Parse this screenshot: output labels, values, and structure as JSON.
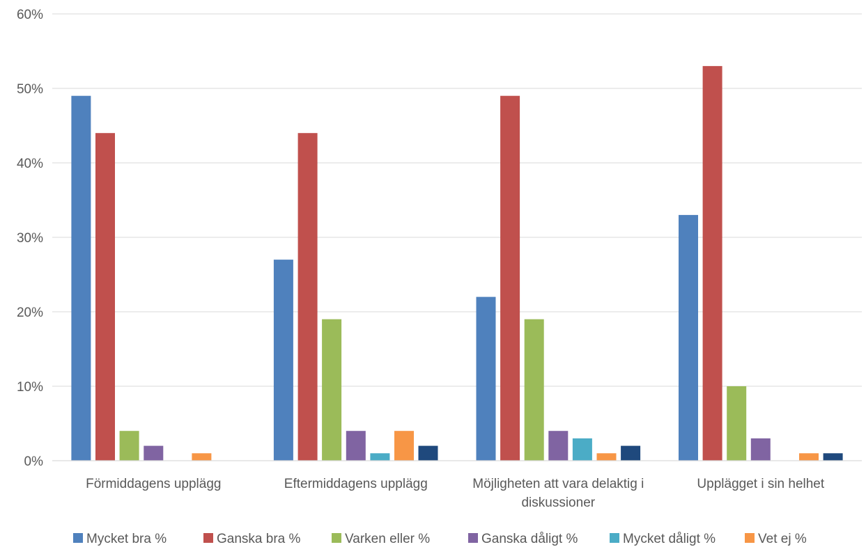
{
  "chart_data": {
    "type": "bar",
    "categories": [
      [
        "Förmiddagens upplägg"
      ],
      [
        "Eftermiddagens upplägg"
      ],
      [
        "Möjligheten att vara delaktig i",
        "diskussioner"
      ],
      [
        "Upplägget i sin helhet"
      ]
    ],
    "series": [
      {
        "name": "Mycket bra %",
        "color": "#4F81BD",
        "values": [
          49,
          27,
          22,
          33
        ]
      },
      {
        "name": "Ganska bra %",
        "color": "#C0504D",
        "values": [
          44,
          44,
          49,
          53
        ]
      },
      {
        "name": "Varken eller %",
        "color": "#9BBB59",
        "values": [
          4,
          19,
          19,
          10
        ]
      },
      {
        "name": "Ganska dåligt %",
        "color": "#8064A2",
        "values": [
          2,
          4,
          4,
          3
        ]
      },
      {
        "name": "Mycket dåligt %",
        "color": "#4BACC6",
        "values": [
          0,
          1,
          3,
          0
        ]
      },
      {
        "name": "Vet ej %",
        "color": "#F79646",
        "values": [
          1,
          4,
          1,
          1
        ]
      },
      {
        "name": "",
        "color": "#1F497D",
        "values": [
          0,
          2,
          2,
          1
        ]
      }
    ],
    "ylim": [
      0,
      60
    ],
    "yticks": [
      0,
      10,
      20,
      30,
      40,
      50,
      60
    ],
    "ytick_suffix": "%",
    "grid": true,
    "legend_position": "bottom"
  }
}
